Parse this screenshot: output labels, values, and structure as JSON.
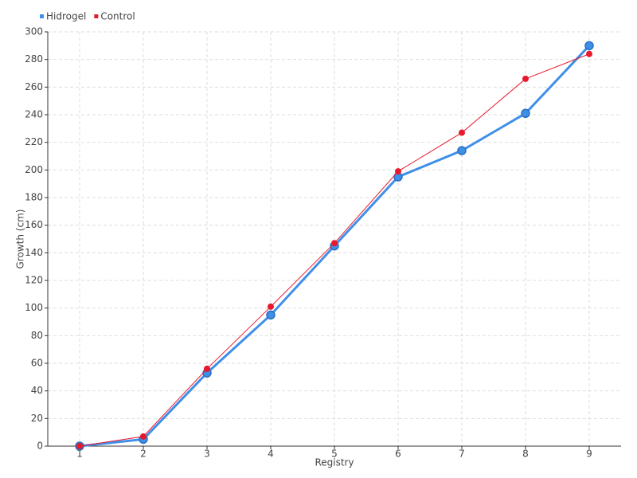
{
  "chart_data": {
    "type": "line",
    "x_label": "Registry",
    "y_label": "Growth (cm)",
    "categories": [
      "1",
      "2",
      "3",
      "4",
      "5",
      "6",
      "7",
      "8",
      "9"
    ],
    "series": [
      {
        "name": "Hidrogel",
        "color": "#3f8fe8",
        "values": [
          0,
          5,
          53,
          95,
          145,
          195,
          214,
          241,
          290
        ]
      },
      {
        "name": "Control",
        "color": "#e8192c",
        "values": [
          0,
          7,
          56,
          101,
          147,
          199,
          227,
          266,
          284
        ]
      }
    ],
    "ylim": [
      0,
      300
    ],
    "yticks": [
      0,
      20,
      40,
      60,
      80,
      100,
      120,
      140,
      160,
      180,
      200,
      220,
      240,
      260,
      280,
      300
    ],
    "grid": true,
    "legend": "top-left"
  }
}
